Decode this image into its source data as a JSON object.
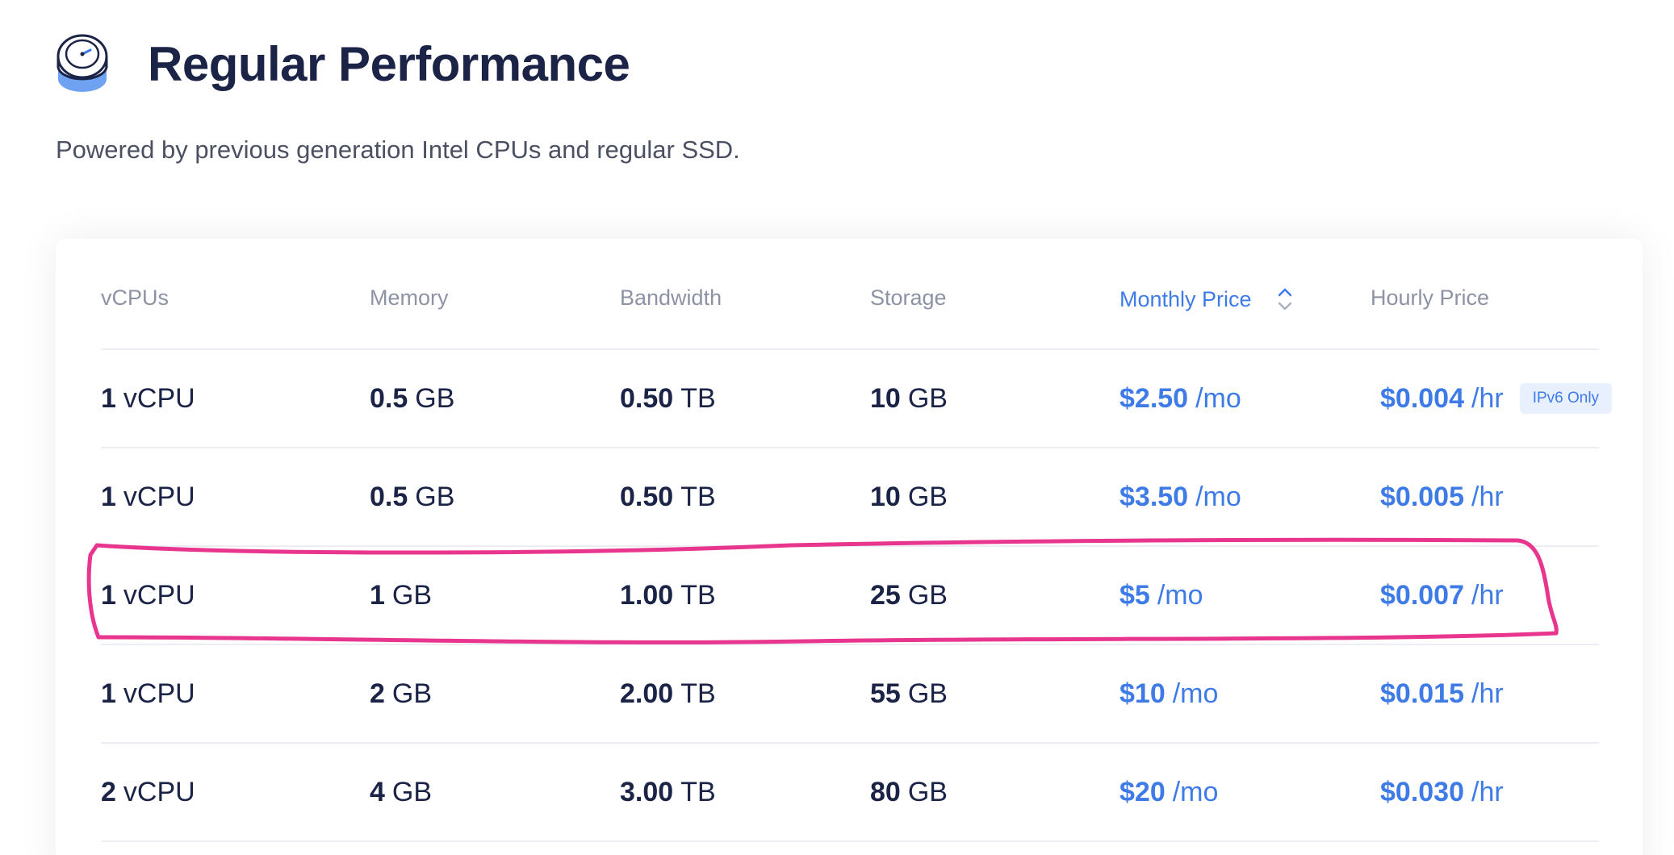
{
  "header": {
    "title": "Regular Performance",
    "subtitle": "Powered by previous generation Intel CPUs and regular SSD.",
    "icon": "speed-gauge-icon"
  },
  "table": {
    "columns": {
      "vcpus": "vCPUs",
      "memory": "Memory",
      "bandwidth": "Bandwidth",
      "storage": "Storage",
      "monthly_price": "Monthly Price",
      "hourly_price": "Hourly Price"
    },
    "sorted_column": "monthly_price",
    "rows": [
      {
        "vcpu_num": "1",
        "vcpu_unit": "vCPU",
        "memory_num": "0.5",
        "memory_unit": "GB",
        "bandwidth_num": "0.50",
        "bandwidth_unit": "TB",
        "storage_num": "10",
        "storage_unit": "GB",
        "monthly_num": "$2.50",
        "monthly_unit": "/mo",
        "hourly_num": "$0.004",
        "hourly_unit": "/hr",
        "badge": "IPv6 Only"
      },
      {
        "vcpu_num": "1",
        "vcpu_unit": "vCPU",
        "memory_num": "0.5",
        "memory_unit": "GB",
        "bandwidth_num": "0.50",
        "bandwidth_unit": "TB",
        "storage_num": "10",
        "storage_unit": "GB",
        "monthly_num": "$3.50",
        "monthly_unit": "/mo",
        "hourly_num": "$0.005",
        "hourly_unit": "/hr",
        "badge": ""
      },
      {
        "vcpu_num": "1",
        "vcpu_unit": "vCPU",
        "memory_num": "1",
        "memory_unit": "GB",
        "bandwidth_num": "1.00",
        "bandwidth_unit": "TB",
        "storage_num": "25",
        "storage_unit": "GB",
        "monthly_num": "$5",
        "monthly_unit": "/mo",
        "hourly_num": "$0.007",
        "hourly_unit": "/hr",
        "badge": ""
      },
      {
        "vcpu_num": "1",
        "vcpu_unit": "vCPU",
        "memory_num": "2",
        "memory_unit": "GB",
        "bandwidth_num": "2.00",
        "bandwidth_unit": "TB",
        "storage_num": "55",
        "storage_unit": "GB",
        "monthly_num": "$10",
        "monthly_unit": "/mo",
        "hourly_num": "$0.015",
        "hourly_unit": "/hr",
        "badge": ""
      },
      {
        "vcpu_num": "2",
        "vcpu_unit": "vCPU",
        "memory_num": "4",
        "memory_unit": "GB",
        "bandwidth_num": "3.00",
        "bandwidth_unit": "TB",
        "storage_num": "80",
        "storage_unit": "GB",
        "monthly_num": "$20",
        "monthly_unit": "/mo",
        "hourly_num": "$0.030",
        "hourly_unit": "/hr",
        "badge": ""
      }
    ]
  },
  "colors": {
    "title": "#1b2347",
    "accent_blue": "#3e7be7",
    "header_gray": "#8d93a4",
    "annotation_pink": "#e8368f"
  },
  "annotation": {
    "type": "hand-drawn-ellipse",
    "highlighted_row": 2
  }
}
